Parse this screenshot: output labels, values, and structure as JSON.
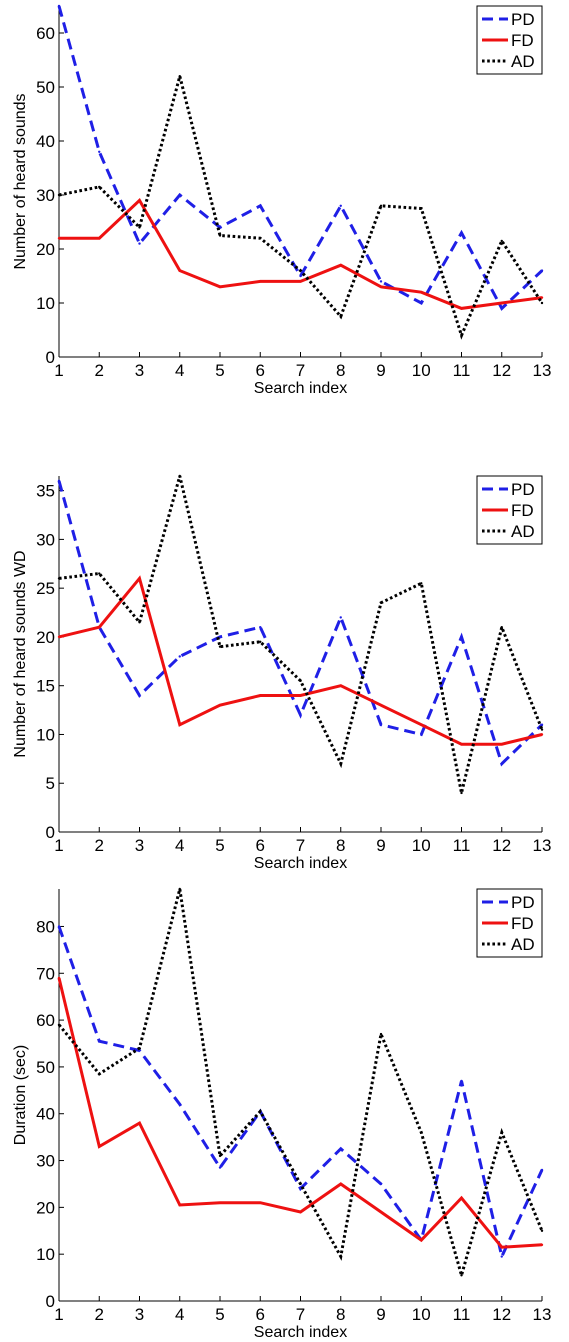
{
  "colors": {
    "PD": "#1f1fe6",
    "FD": "#ee1111",
    "AD": "#000000"
  },
  "chart_data": [
    {
      "type": "line",
      "xlabel": "Search index",
      "ylabel": "Number of heard sounds",
      "xlim": [
        1,
        13
      ],
      "ylim": [
        0,
        65
      ],
      "xticks": [
        1,
        2,
        3,
        4,
        5,
        6,
        7,
        8,
        9,
        10,
        11,
        12,
        13
      ],
      "yticks": [
        0,
        10,
        20,
        30,
        40,
        50,
        60
      ],
      "grid": false,
      "legend": "top-right",
      "x": [
        1,
        2,
        3,
        4,
        5,
        6,
        7,
        8,
        9,
        10,
        11,
        12,
        13
      ],
      "series": [
        {
          "name": "PD",
          "style": "dashed",
          "values": [
            65,
            38,
            21,
            30,
            24,
            28,
            15,
            28,
            14,
            10,
            23,
            9,
            16
          ]
        },
        {
          "name": "FD",
          "style": "solid",
          "values": [
            22,
            22,
            29,
            16,
            13,
            14,
            14,
            17,
            13,
            12,
            9,
            10,
            11
          ]
        },
        {
          "name": "AD",
          "style": "dotted",
          "values": [
            30,
            31.5,
            24,
            52,
            22.5,
            22,
            16,
            7.5,
            28,
            27.5,
            4,
            21.5,
            10
          ]
        }
      ]
    },
    {
      "type": "line",
      "xlabel": "Search index",
      "ylabel": "Number of heard sounds WD",
      "xlim": [
        1,
        13
      ],
      "ylim": [
        0,
        36.5
      ],
      "xticks": [
        1,
        2,
        3,
        4,
        5,
        6,
        7,
        8,
        9,
        10,
        11,
        12,
        13
      ],
      "yticks": [
        0,
        5,
        10,
        15,
        20,
        25,
        30,
        35
      ],
      "grid": false,
      "legend": "top-right",
      "x": [
        1,
        2,
        3,
        4,
        5,
        6,
        7,
        8,
        9,
        10,
        11,
        12,
        13
      ],
      "series": [
        {
          "name": "PD",
          "style": "dashed",
          "values": [
            36,
            21,
            14,
            18,
            20,
            21,
            12,
            22,
            11,
            10,
            20,
            7,
            11
          ]
        },
        {
          "name": "FD",
          "style": "solid",
          "values": [
            20,
            21,
            26,
            11,
            13,
            14,
            14,
            15,
            13,
            11,
            9,
            9,
            10
          ]
        },
        {
          "name": "AD",
          "style": "dotted",
          "values": [
            26,
            26.5,
            21.5,
            36.5,
            19,
            19.5,
            15.5,
            7,
            23.5,
            25.5,
            4,
            21,
            10.5
          ]
        }
      ]
    },
    {
      "type": "line",
      "xlabel": "Search index",
      "ylabel": "Duration (sec)",
      "xlim": [
        1,
        13
      ],
      "ylim": [
        0,
        88
      ],
      "xticks": [
        1,
        2,
        3,
        4,
        5,
        6,
        7,
        8,
        9,
        10,
        11,
        12,
        13
      ],
      "yticks": [
        0,
        10,
        20,
        30,
        40,
        50,
        60,
        70,
        80
      ],
      "grid": false,
      "legend": "top-right",
      "x": [
        1,
        2,
        3,
        4,
        5,
        6,
        7,
        8,
        9,
        10,
        11,
        12,
        13
      ],
      "series": [
        {
          "name": "PD",
          "style": "dashed",
          "values": [
            80,
            55.5,
            53.5,
            42,
            28.5,
            40.5,
            24,
            32.5,
            25,
            13,
            47,
            9.5,
            28
          ]
        },
        {
          "name": "FD",
          "style": "solid",
          "values": [
            69,
            33,
            38,
            20.5,
            21,
            21,
            19,
            25,
            19,
            13,
            22,
            11.5,
            12
          ]
        },
        {
          "name": "AD",
          "style": "dotted",
          "values": [
            59,
            48.5,
            54,
            88,
            31,
            40.5,
            25,
            9.5,
            57,
            36,
            5.5,
            36,
            15
          ]
        }
      ]
    }
  ]
}
